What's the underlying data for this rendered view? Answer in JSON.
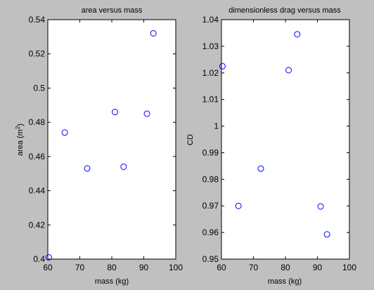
{
  "chart_data": [
    {
      "type": "scatter",
      "title": "area versus mass",
      "xlabel": "mass (kg)",
      "ylabel_main": "area (m",
      "ylabel_sup": "2",
      "ylabel_tail": ")",
      "xlim": [
        60,
        100
      ],
      "ylim": [
        0.4,
        0.54
      ],
      "xticks": [
        "60",
        "70",
        "80",
        "90",
        "100"
      ],
      "yticks": [
        "0.4",
        "0.42",
        "0.44",
        "0.46",
        "0.48",
        "0.5",
        "0.52",
        "0.54"
      ],
      "grid": false,
      "marker_color": "#0000ff",
      "points": [
        {
          "x": 60.3,
          "y": 0.401
        },
        {
          "x": 65.3,
          "y": 0.474
        },
        {
          "x": 72.3,
          "y": 0.453
        },
        {
          "x": 81.0,
          "y": 0.486
        },
        {
          "x": 83.7,
          "y": 0.454
        },
        {
          "x": 91.0,
          "y": 0.485
        },
        {
          "x": 93.0,
          "y": 0.532
        }
      ]
    },
    {
      "type": "scatter",
      "title": "dimensionless drag versus mass",
      "xlabel": "mass (kg)",
      "ylabel": "CD",
      "xlim": [
        60,
        100
      ],
      "ylim": [
        0.95,
        1.04
      ],
      "xticks": [
        "60",
        "70",
        "80",
        "90",
        "100"
      ],
      "yticks": [
        "0.95",
        "0.96",
        "0.97",
        "0.98",
        "0.99",
        "1",
        "1.01",
        "1.02",
        "1.03",
        "1.04"
      ],
      "grid": false,
      "marker_color": "#0000ff",
      "points": [
        {
          "x": 60.3,
          "y": 1.0225
        },
        {
          "x": 65.3,
          "y": 0.97
        },
        {
          "x": 72.3,
          "y": 0.984
        },
        {
          "x": 81.0,
          "y": 1.021
        },
        {
          "x": 83.7,
          "y": 1.0345
        },
        {
          "x": 91.0,
          "y": 0.9698
        },
        {
          "x": 93.0,
          "y": 0.9593
        }
      ]
    }
  ]
}
